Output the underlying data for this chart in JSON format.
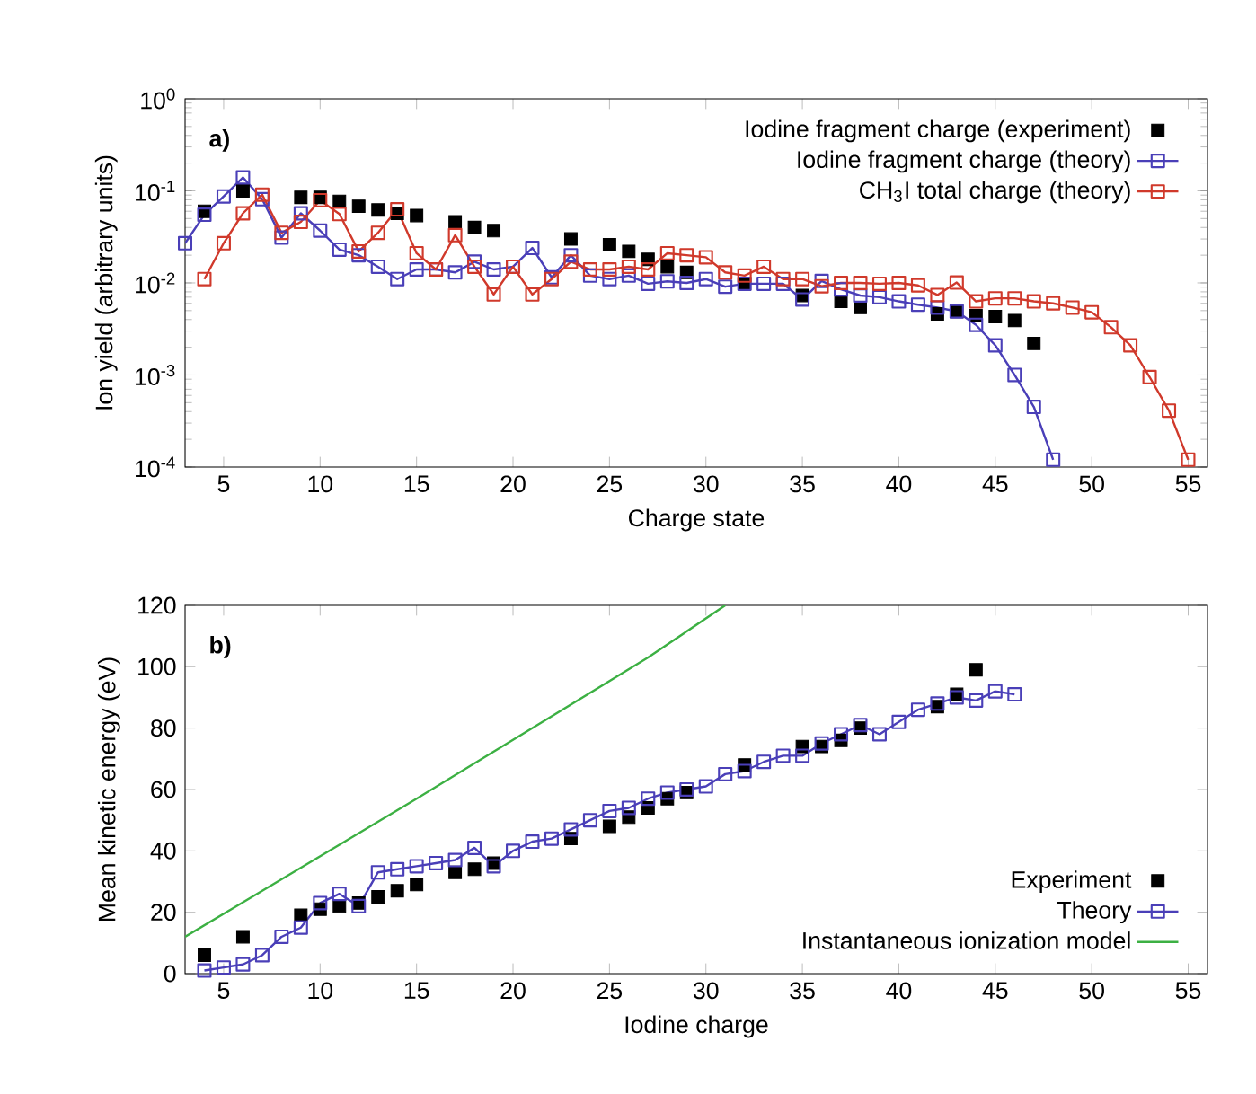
{
  "chart_data": [
    {
      "type": "line",
      "annotations": [
        "a)"
      ],
      "xlabel": "Charge state",
      "ylabel": "Ion yield (arbitrary units)",
      "log": "y",
      "xlim": [
        3,
        56
      ],
      "xticks": [
        5,
        10,
        15,
        20,
        25,
        30,
        35,
        40,
        45,
        50,
        55
      ],
      "ylim": [
        0.0001,
        1
      ],
      "yticks": [
        {
          "value": 0.0001,
          "label": "10$^{-4}$"
        },
        {
          "value": 0.001,
          "label": "10$^{-3}$"
        },
        {
          "value": 0.01,
          "label": "10$^{-2}$"
        },
        {
          "value": 0.1,
          "label": "10$^{-1}$"
        },
        {
          "value": 1,
          "label": "10$^{0}$"
        }
      ],
      "legend": "top right",
      "series": [
        {
          "name": "Iodine fragment charge (experiment)",
          "type": "scatter",
          "marker": "square",
          "color": "#000000",
          "x": [
            4,
            6,
            9,
            10,
            11,
            12,
            13,
            14,
            15,
            17,
            18,
            19,
            23,
            25,
            26,
            27,
            28,
            29,
            32,
            35,
            37,
            38,
            42,
            43,
            44,
            45,
            46,
            47
          ],
          "values": [
            0.06,
            0.1,
            0.085,
            0.085,
            0.077,
            0.068,
            0.062,
            0.057,
            0.054,
            0.046,
            0.04,
            0.037,
            0.03,
            0.026,
            0.022,
            0.018,
            0.015,
            0.013,
            0.0098,
            0.0073,
            0.0063,
            0.0054,
            0.0046,
            0.0049,
            0.0044,
            0.0043,
            0.0039,
            0.0022
          ]
        },
        {
          "name": "Iodine fragment charge (theory)",
          "marker": "square",
          "color": "#4a3fb8",
          "x": [
            3,
            4,
            5,
            6,
            7,
            8,
            9,
            10,
            11,
            12,
            13,
            14,
            15,
            16,
            17,
            18,
            19,
            20,
            21,
            22,
            23,
            24,
            25,
            26,
            27,
            28,
            29,
            30,
            31,
            32,
            33,
            34,
            35,
            36,
            37,
            38,
            39,
            40,
            41,
            42,
            43,
            44,
            45,
            46,
            47,
            48
          ],
          "values": [
            0.027,
            0.055,
            0.087,
            0.14,
            0.081,
            0.031,
            0.057,
            0.037,
            0.023,
            0.02,
            0.015,
            0.011,
            0.014,
            0.014,
            0.013,
            0.017,
            0.014,
            0.015,
            0.024,
            0.0115,
            0.02,
            0.012,
            0.011,
            0.012,
            0.0098,
            0.0104,
            0.01,
            0.011,
            0.0091,
            0.0098,
            0.0098,
            0.0098,
            0.0066,
            0.0105,
            0.0085,
            0.0073,
            0.007,
            0.0063,
            0.0058,
            0.0054,
            0.0049,
            0.0035,
            0.0021,
            0.001,
            0.00045,
            0.00012
          ]
        },
        {
          "name": "CH$_{3}$I total charge (theory)",
          "marker": "square",
          "color": "#d0392b",
          "x": [
            4,
            5,
            6,
            7,
            8,
            9,
            10,
            11,
            12,
            13,
            14,
            15,
            16,
            17,
            18,
            19,
            20,
            21,
            22,
            23,
            24,
            25,
            26,
            27,
            28,
            29,
            30,
            31,
            32,
            33,
            34,
            35,
            36,
            37,
            38,
            39,
            40,
            41,
            42,
            43,
            44,
            45,
            46,
            47,
            48,
            49,
            50,
            51,
            52,
            53,
            54,
            55
          ],
          "values": [
            0.011,
            0.027,
            0.057,
            0.091,
            0.035,
            0.046,
            0.079,
            0.056,
            0.022,
            0.035,
            0.063,
            0.021,
            0.014,
            0.033,
            0.015,
            0.0075,
            0.015,
            0.0075,
            0.011,
            0.017,
            0.014,
            0.014,
            0.015,
            0.014,
            0.021,
            0.02,
            0.019,
            0.013,
            0.012,
            0.015,
            0.011,
            0.011,
            0.0092,
            0.01,
            0.01,
            0.0098,
            0.01,
            0.0094,
            0.0074,
            0.0101,
            0.0063,
            0.0068,
            0.0068,
            0.0063,
            0.006,
            0.0054,
            0.0048,
            0.0033,
            0.0021,
            0.00095,
            0.00041,
            0.00012
          ]
        }
      ]
    },
    {
      "type": "line",
      "annotations": [
        "b)"
      ],
      "xlabel": "Iodine charge",
      "ylabel": "Mean kinetic energy (eV)",
      "xlim": [
        3,
        56
      ],
      "xticks": [
        5,
        10,
        15,
        20,
        25,
        30,
        35,
        40,
        45,
        50,
        55
      ],
      "ylim": [
        0,
        120
      ],
      "yticks": [
        0,
        20,
        40,
        60,
        80,
        100,
        120
      ],
      "legend": "bottom right",
      "series": [
        {
          "name": "Experiment",
          "type": "scatter",
          "marker": "square",
          "color": "#000000",
          "x": [
            4,
            6,
            9,
            10,
            11,
            12,
            13,
            14,
            15,
            17,
            18,
            19,
            23,
            25,
            26,
            27,
            28,
            29,
            32,
            35,
            36,
            37,
            38,
            42,
            43,
            44
          ],
          "values": [
            6,
            12,
            19,
            21,
            22,
            23,
            25,
            27,
            29,
            33,
            34,
            36,
            44,
            48,
            51,
            54,
            57,
            59,
            68,
            74,
            74,
            76,
            80,
            87,
            91,
            99
          ]
        },
        {
          "name": "Theory",
          "marker": "square",
          "color": "#4a3fb8",
          "x": [
            4,
            5,
            6,
            7,
            8,
            9,
            10,
            11,
            12,
            13,
            14,
            15,
            16,
            17,
            18,
            19,
            20,
            21,
            22,
            23,
            24,
            25,
            26,
            27,
            28,
            29,
            30,
            31,
            32,
            33,
            34,
            35,
            36,
            37,
            38,
            39,
            40,
            41,
            42,
            43,
            44,
            45,
            46
          ],
          "values": [
            1,
            2,
            3,
            6,
            12,
            15,
            23,
            26,
            22,
            33,
            34,
            35,
            36,
            37,
            41,
            35,
            40,
            43,
            44,
            47,
            50,
            53,
            54,
            57,
            59,
            60,
            61,
            65,
            66,
            69,
            71,
            71,
            75,
            78,
            81,
            78,
            82,
            86,
            88,
            90,
            89,
            92,
            91
          ]
        },
        {
          "name": "Instantaneous ionization model",
          "color": "#3cb043",
          "x": [
            3,
            15,
            27,
            31
          ],
          "values": [
            12,
            57,
            103,
            120
          ]
        }
      ]
    }
  ]
}
